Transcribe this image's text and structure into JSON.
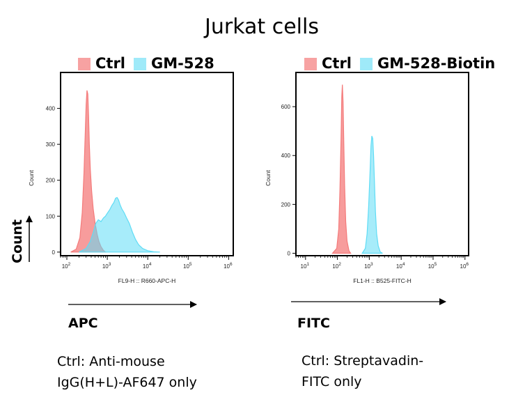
{
  "title": "Jurkat cells",
  "colors": {
    "ctrl": "#f47b7b",
    "sample": "#5fdcf5",
    "ctrl_fill": "rgba(244,123,123,0.75)",
    "sample_fill": "rgba(95,220,245,0.55)"
  },
  "big_count_label": "Count",
  "chart_data": [
    {
      "type": "area",
      "title": "",
      "legend": [
        "Ctrl",
        "GM-528"
      ],
      "legend_position": "top",
      "xlabel": "FL9-H :: R660-APC-H",
      "ylabel": "Count",
      "x_scale": "log",
      "xlim": [
        70,
        1300000
      ],
      "ylim": [
        -10,
        500
      ],
      "x_ticks": [
        100,
        1000,
        10000,
        100000,
        1000000
      ],
      "x_tick_labels": [
        {
          "base": "10",
          "exp": "2"
        },
        {
          "base": "10",
          "exp": "3"
        },
        {
          "base": "10",
          "exp": "4"
        },
        {
          "base": "10",
          "exp": "5"
        },
        {
          "base": "10",
          "exp": "6"
        }
      ],
      "y_ticks": [
        0,
        100,
        200,
        300,
        400
      ],
      "y_tick_labels": [
        "0",
        "100",
        "200",
        "300",
        "400"
      ],
      "grid": false,
      "axis_arrow_label": "APC",
      "note": [
        "Ctrl: Anti-mouse",
        "IgG(H+L)-AF647 only"
      ],
      "series": [
        {
          "name": "Ctrl",
          "x": [
            125,
            170,
            210,
            240,
            265,
            285,
            300,
            315,
            330,
            345,
            360,
            380,
            410,
            450,
            500,
            560,
            620,
            700,
            800,
            900
          ],
          "y": [
            0,
            8,
            40,
            110,
            220,
            330,
            410,
            450,
            440,
            380,
            300,
            230,
            170,
            120,
            80,
            50,
            30,
            15,
            5,
            0
          ]
        },
        {
          "name": "GM-528",
          "x": [
            200,
            300,
            380,
            450,
            520,
            600,
            700,
            800,
            900,
            1000,
            1150,
            1300,
            1450,
            1600,
            1750,
            1900,
            2100,
            2300,
            2600,
            3000,
            3500,
            4200,
            5000,
            6000,
            7500,
            10000,
            14000,
            20000
          ],
          "y": [
            0,
            10,
            30,
            55,
            80,
            90,
            85,
            95,
            100,
            108,
            118,
            130,
            138,
            150,
            152,
            145,
            130,
            120,
            110,
            95,
            80,
            55,
            35,
            20,
            10,
            4,
            1,
            0
          ]
        }
      ]
    },
    {
      "type": "area",
      "title": "",
      "legend": [
        "Ctrl",
        "GM-528-Biotin"
      ],
      "legend_position": "top",
      "xlabel": "FL1-H :: B525-FITC-H",
      "ylabel": "Count",
      "x_scale": "log",
      "xlim": [
        5,
        1300000
      ],
      "ylim": [
        -10,
        740
      ],
      "x_ticks": [
        10,
        100,
        1000,
        10000,
        100000,
        1000000
      ],
      "x_tick_labels": [
        {
          "base": "10",
          "exp": "1"
        },
        {
          "base": "10",
          "exp": "2"
        },
        {
          "base": "10",
          "exp": "3"
        },
        {
          "base": "10",
          "exp": "4"
        },
        {
          "base": "10",
          "exp": "5"
        },
        {
          "base": "10",
          "exp": "6"
        }
      ],
      "y_ticks": [
        0,
        200,
        400,
        600
      ],
      "y_tick_labels": [
        "0",
        "200",
        "400",
        "600"
      ],
      "grid": false,
      "axis_arrow_label": "FITC",
      "note": [
        "Ctrl: Streptavadin-",
        "FITC only"
      ],
      "series": [
        {
          "name": "Ctrl",
          "x": [
            70,
            95,
            110,
            120,
            130,
            137,
            143,
            150,
            158,
            168,
            182,
            200,
            230,
            260
          ],
          "y": [
            0,
            20,
            100,
            260,
            470,
            640,
            690,
            620,
            460,
            280,
            130,
            50,
            10,
            0
          ]
        },
        {
          "name": "GM-528-Biotin",
          "x": [
            600,
            750,
            850,
            950,
            1050,
            1130,
            1200,
            1280,
            1360,
            1450,
            1560,
            1700,
            1900,
            2200,
            2600
          ],
          "y": [
            0,
            20,
            80,
            190,
            330,
            440,
            480,
            470,
            400,
            290,
            170,
            80,
            30,
            5,
            0
          ]
        }
      ]
    }
  ]
}
